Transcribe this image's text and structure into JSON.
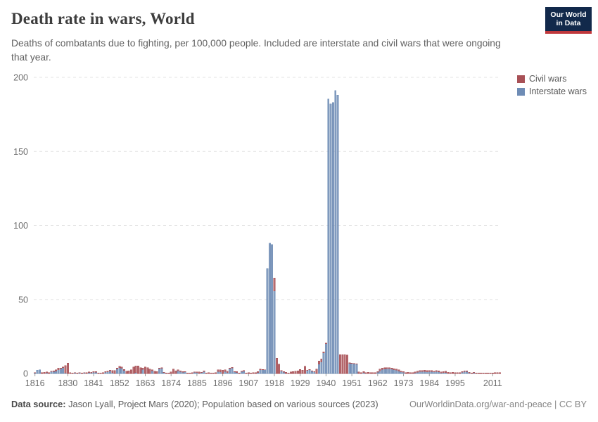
{
  "header": {
    "title": "Death rate in wars, World",
    "subtitle": "Deaths of combatants due to fighting, per 100,000 people. Included are interstate and civil wars that were ongoing that year.",
    "logo": {
      "line1": "Our World",
      "line2": "in Data",
      "bg_color": "#12294b",
      "stripe_color": "#c0383c"
    }
  },
  "footer": {
    "source_label": "Data source:",
    "source_text": " Jason Lyall, Project Mars (2020); Population based on various sources (2023)",
    "right_text": "OurWorldinData.org/war-and-peace | CC BY"
  },
  "chart_data": {
    "type": "bar",
    "stacked": true,
    "title": "Death rate in wars, World",
    "xlabel": "",
    "ylabel": "",
    "ylim": [
      0,
      200
    ],
    "yticks": [
      0,
      50,
      100,
      150,
      200
    ],
    "xticks": [
      1816,
      1830,
      1841,
      1852,
      1863,
      1874,
      1885,
      1896,
      1907,
      1918,
      1929,
      1940,
      1951,
      1962,
      1973,
      1984,
      1995,
      2011
    ],
    "x_start": 1816,
    "x_end": 2014,
    "grid": "horizontal-dashed",
    "legend_position": "top-right",
    "colors": {
      "grid": "#e3e3e3",
      "axis": "#b3b3b3",
      "tick": "#9a9a9a",
      "tick_label": "#6e6e6e"
    },
    "series": [
      {
        "name": "Civil wars",
        "color": "#a85056",
        "values": [
          0.2,
          0,
          0,
          0.5,
          0.8,
          0.8,
          0.6,
          0.4,
          0.5,
          0.8,
          1.0,
          0.5,
          0.3,
          5.0,
          6.9,
          0.6,
          0.4,
          0.3,
          0.4,
          0.4,
          0.3,
          0.3,
          0.5,
          0.5,
          0.6,
          0.5,
          0.5,
          0.3,
          0.3,
          0.5,
          0.5,
          0.6,
          0.6,
          1.6,
          2.1,
          0.8,
          0.8,
          0.8,
          0.6,
          1.6,
          1.9,
          2.4,
          4.3,
          4.5,
          5.0,
          4.0,
          1.0,
          4.5,
          4.0,
          2.9,
          0.5,
          1.6,
          1.3,
          0.5,
          0.5,
          0.3,
          0.3,
          0.3,
          1.0,
          2.9,
          1.9,
          0.5,
          0.5,
          0.5,
          0.3,
          0.3,
          0.4,
          0.5,
          0.3,
          0.5,
          1.0,
          0.3,
          0.3,
          0.4,
          0.6,
          0.4,
          0.3,
          0.5,
          1.3,
          1.6,
          2.2,
          1.3,
          1.0,
          0.6,
          0.5,
          0.4,
          0.8,
          0.4,
          0.3,
          0.4,
          0.3,
          0.6,
          0.3,
          0.5,
          0.6,
          0.8,
          0.5,
          0.3,
          0.2,
          0,
          0,
          0,
          8.8,
          10.4,
          6.4,
          0.5,
          0.4,
          0.8,
          0.4,
          1.0,
          1.3,
          1.6,
          1.9,
          2.7,
          2.2,
          4.8,
          0.3,
          0.3,
          0.3,
          0.3,
          2.9,
          2.1,
          2.1,
          0.6,
          0.5,
          0,
          0,
          0,
          0,
          0,
          12.8,
          12.8,
          12.8,
          12.5,
          0.5,
          0.3,
          0.3,
          0.3,
          1.0,
          0.6,
          0.8,
          0.5,
          0.8,
          0.6,
          0.5,
          0.5,
          0.6,
          1.0,
          1.0,
          1.0,
          0.8,
          0.8,
          0.8,
          0.6,
          0.6,
          0.8,
          0.5,
          0.5,
          0.6,
          0.8,
          0.6,
          0.5,
          0.8,
          0.8,
          0.8,
          0.8,
          1.0,
          1.0,
          0.8,
          0.8,
          0.6,
          0.8,
          0.8,
          0.8,
          0.8,
          1.0,
          0.8,
          0.6,
          0.8,
          0.6,
          0.5,
          0.5,
          0.6,
          0.6,
          0.5,
          0.5,
          0.4,
          0.4,
          0.4,
          0.3,
          0.3,
          0.4,
          0.4,
          0.3,
          0.3,
          0.4,
          0.5,
          0.6,
          0.6
        ]
      },
      {
        "name": "Interstate wars",
        "color": "#6e8cb5",
        "values": [
          0.3,
          2.2,
          2.4,
          0,
          0,
          0.3,
          0,
          1.2,
          1.4,
          1.6,
          2.6,
          3.3,
          4.0,
          0.3,
          0,
          0,
          0,
          0.3,
          0,
          0.3,
          0,
          0.3,
          0,
          0.5,
          0.3,
          0.8,
          0.8,
          0,
          0,
          0,
          0.8,
          1.0,
          1.7,
          0.5,
          0,
          2.9,
          4.0,
          3.5,
          2.1,
          0,
          0,
          0,
          0,
          0.5,
          0,
          0,
          2.7,
          0,
          0,
          0,
          1.9,
          0,
          0,
          3.2,
          3.5,
          0.5,
          0,
          0,
          0,
          0,
          0,
          1.9,
          1.3,
          0.8,
          1.0,
          0,
          0,
          0,
          0.8,
          0.6,
          0,
          0.5,
          1.4,
          0,
          0,
          0,
          0,
          0,
          1.3,
          1.0,
          0,
          1.3,
          0.6,
          3.2,
          3.7,
          1.0,
          0.6,
          0,
          1.3,
          1.6,
          0,
          0,
          0,
          0,
          0,
          0.6,
          2.4,
          2.4,
          2.4,
          71,
          88,
          87,
          55.8,
          0,
          0,
          1.6,
          0.8,
          0,
          0,
          0,
          0,
          0,
          0,
          0,
          0,
          0,
          2.0,
          2.5,
          1.5,
          1.0,
          0,
          6.4,
          7.7,
          14.0,
          20.0,
          185.5,
          182,
          183,
          191,
          188,
          0,
          0,
          0,
          0,
          6.8,
          6.8,
          6.5,
          6.3,
          0,
          0,
          0.5,
          0,
          0,
          0,
          0,
          0,
          0.8,
          1.9,
          2.7,
          3.0,
          3.2,
          3.2,
          2.9,
          2.6,
          2.3,
          1.6,
          1.0,
          0.8,
          0,
          0,
          0,
          0,
          0.3,
          0.8,
          1.2,
          1.2,
          1.3,
          1.0,
          1.3,
          1.2,
          1.0,
          1.2,
          1.0,
          0.3,
          0.5,
          0.6,
          0,
          0,
          0,
          0,
          0,
          0,
          0.8,
          1.2,
          1.2,
          0.3,
          0,
          0.4,
          0,
          0,
          0,
          0,
          0,
          0,
          0,
          0,
          0,
          0,
          0
        ]
      }
    ]
  }
}
